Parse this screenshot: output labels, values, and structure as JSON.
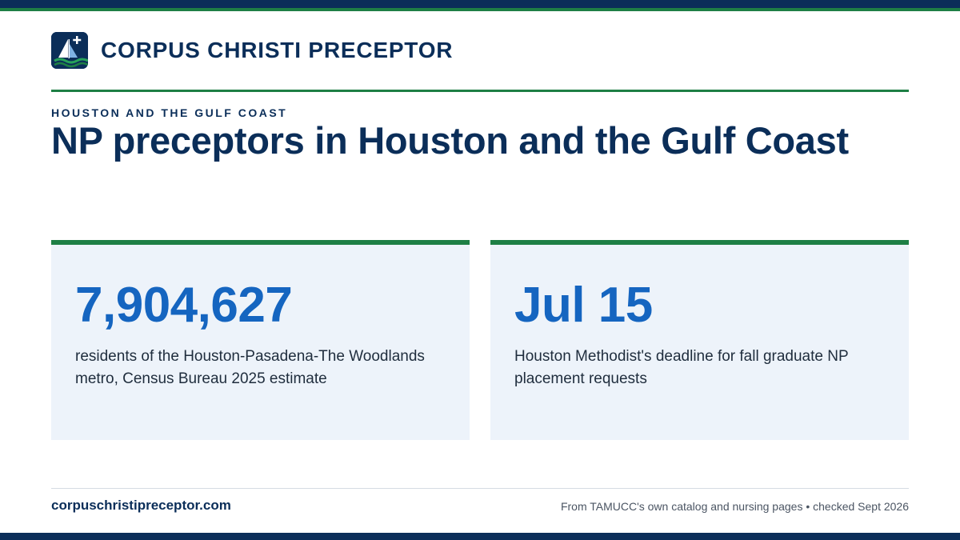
{
  "brand": {
    "name": "CORPUS CHRISTI PRECEPTOR",
    "logo_icon": "sailboat-plus-icon"
  },
  "eyebrow": "HOUSTON AND THE GULF COAST",
  "headline": "NP preceptors in Houston and the Gulf Coast",
  "stats": [
    {
      "value": "7,904,627",
      "description": "residents of the Houston-Pasadena-The Woodlands metro, Census Bureau 2025 estimate"
    },
    {
      "value": "Jul 15",
      "description": "Houston Methodist's deadline for fall graduate NP placement requests"
    }
  ],
  "footer": {
    "url": "corpuschristipreceptor.com",
    "source": "From TAMUCC's own catalog and nursing pages • checked Sept 2026"
  },
  "colors": {
    "navy": "#0b2e59",
    "green": "#1e7f45",
    "stat_blue": "#1565c0",
    "card_bg": "#edf3fa"
  }
}
